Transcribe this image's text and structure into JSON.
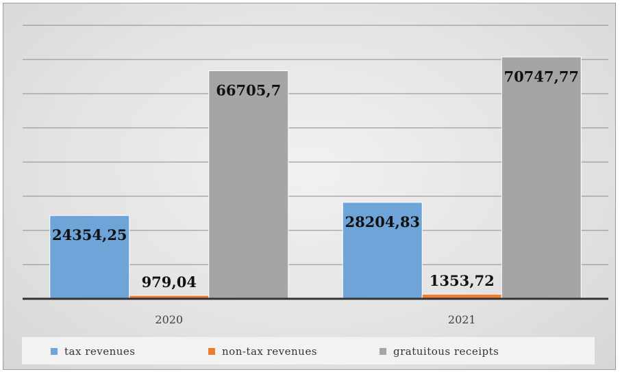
{
  "chart_data": {
    "type": "bar",
    "categories": [
      "2020",
      "2021"
    ],
    "series": [
      {
        "name": "tax revenues",
        "color": "#6fa4d9",
        "values": [
          24354.25,
          28204.83
        ],
        "labels": [
          "24354,25",
          "28204,83"
        ]
      },
      {
        "name": "non-tax revenues",
        "color": "#ed7d31",
        "values": [
          979.04,
          1353.72
        ],
        "labels": [
          "979,04",
          "1353,72"
        ]
      },
      {
        "name": "gratuitous receipts",
        "color": "#a5a5a5",
        "values": [
          66705.7,
          70747.77
        ],
        "labels": [
          "66705,7",
          "70747,77"
        ]
      }
    ],
    "title": "",
    "xlabel": "",
    "ylabel": "",
    "ylim": [
      0,
      80000
    ],
    "y_tick_labels_shown": false,
    "grid": true,
    "legend_position": "bottom"
  }
}
